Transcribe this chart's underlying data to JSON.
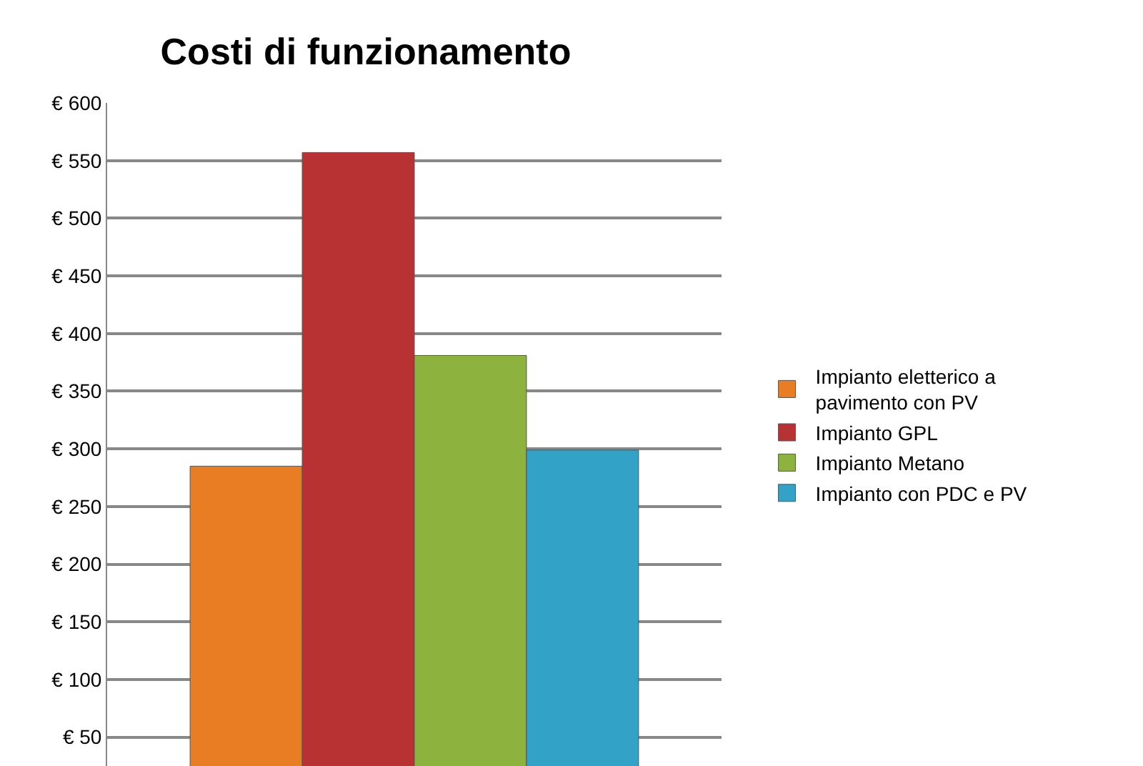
{
  "chart_data": {
    "type": "bar",
    "title": "Costi di funzionamento",
    "categories": [
      null
    ],
    "series": [
      {
        "name": "Impianto eletterico a pavimento con PV",
        "color": "#e87d24",
        "values": [
          285
        ]
      },
      {
        "name": "Impianto GPL",
        "color": "#b83234",
        "values": [
          557
        ]
      },
      {
        "name": "Impianto Metano",
        "color": "#8db33e",
        "values": [
          381
        ]
      },
      {
        "name": "Impianto con PDC e PV",
        "color": "#32a2c6",
        "values": [
          299
        ]
      }
    ],
    "ylim": [
      25,
      600
    ],
    "yticks": [
      {
        "value": 50,
        "label": "€ 50"
      },
      {
        "value": 100,
        "label": "€ 100"
      },
      {
        "value": 150,
        "label": "€ 150"
      },
      {
        "value": 200,
        "label": "€ 200"
      },
      {
        "value": 250,
        "label": "€ 250"
      },
      {
        "value": 300,
        "label": "€ 300"
      },
      {
        "value": 350,
        "label": "€ 350"
      },
      {
        "value": 400,
        "label": "€ 400"
      },
      {
        "value": 450,
        "label": "€ 450"
      },
      {
        "value": 500,
        "label": "€ 500"
      },
      {
        "value": 550,
        "label": "€ 550"
      },
      {
        "value": 600,
        "label": "€ 600"
      }
    ],
    "grid": "y",
    "legend": "right",
    "tick_labels": "y"
  }
}
